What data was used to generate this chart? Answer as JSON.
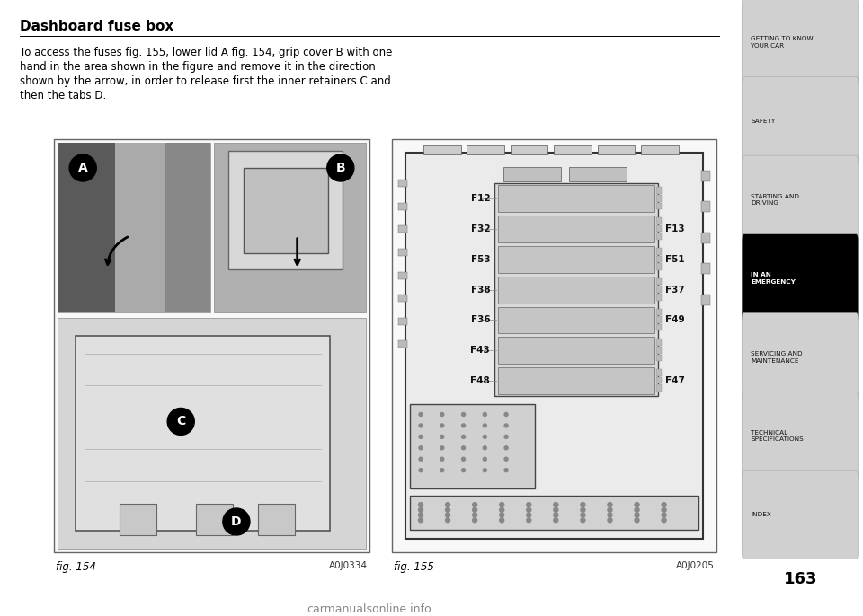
{
  "title": "Dashboard fuse box",
  "body_text_line1": "To access the fuses fig. 155, lower lid A fig. 154, grip cover B with one",
  "body_text_line2": "hand in the area shown in the figure and remove it in the direction",
  "body_text_line3": "shown by the arrow, in order to release first the inner retainers C and",
  "body_text_line4": "then the tabs D.",
  "fig154_label": "fig. 154",
  "fig154_code": "A0J0334",
  "fig155_label": "fig. 155",
  "fig155_code": "A0J0205",
  "page_number": "163",
  "sidebar_items": [
    {
      "text": "GETTING TO KNOW\nYOUR CAR",
      "active": false
    },
    {
      "text": "SAFETY",
      "active": false
    },
    {
      "text": "STARTING AND\nDRIVING",
      "active": false
    },
    {
      "text": "IN AN\nEMERGENCY",
      "active": true
    },
    {
      "text": "SERVICING AND\nMAINTENANCE",
      "active": false
    },
    {
      "text": "TECHNICAL\nSPECIFICATIONS",
      "active": false
    },
    {
      "text": "INDEX",
      "active": false
    }
  ],
  "fuse_labels_left": [
    "F12",
    "F32",
    "F53",
    "F38",
    "F36",
    "F43",
    "F48"
  ],
  "fuse_labels_right": [
    "F13",
    "F51",
    "F37",
    "F49",
    "F47"
  ],
  "bg_color": "#ffffff",
  "sidebar_bg": "#d0d0d0",
  "sidebar_active_bg": "#000000",
  "sidebar_active_text": "#ffffff",
  "sidebar_inactive_text": "#111111",
  "watermark": "carmanualsonline.info"
}
